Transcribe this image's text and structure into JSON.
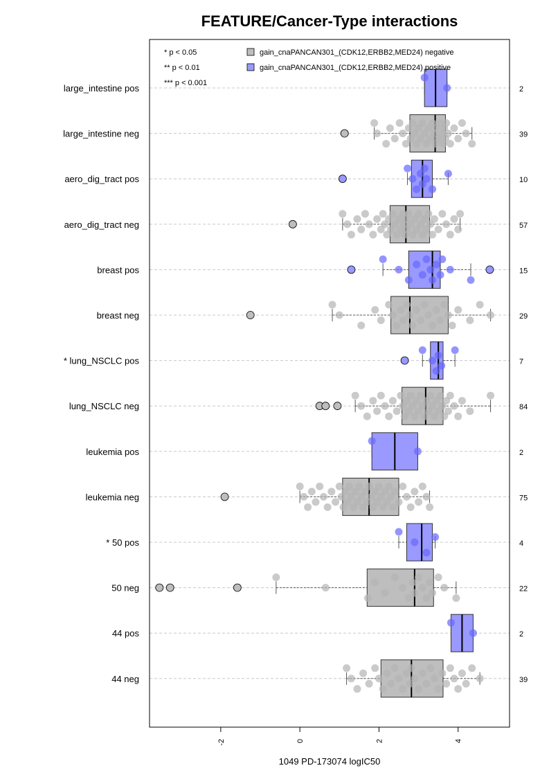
{
  "chart_data": {
    "type": "boxplot",
    "title": "FEATURE/Cancer-Type interactions",
    "xlabel": "1049 PD-173074 logIC50",
    "xlim": [
      -3.8,
      5.3
    ],
    "xticks": [
      -2,
      0,
      2,
      4
    ],
    "xtick_labels": [
      "-2",
      "0",
      "2",
      "4"
    ],
    "legend": {
      "placement": "top",
      "entries": [
        {
          "label": "gain_cnaPANCAN301_(CDK12,ERBB2,MED24) negative",
          "color": "#bebebe"
        },
        {
          "label": "gain_cnaPANCAN301_(CDK12,ERBB2,MED24) positive",
          "color": "#9999ff"
        }
      ],
      "significance": [
        "* p < 0.05",
        "** p < 0.01",
        "*** p < 0.001"
      ]
    },
    "colors": {
      "negative": "#bebebe",
      "positive": "#9999ff",
      "neg_points": "#b3b3b3",
      "pos_points": "#6666ff",
      "grid": "#c8c8c8"
    },
    "groups": [
      {
        "label": "large_intestine pos",
        "count": "2",
        "status": "positive",
        "stats": {
          "wlo": 3.15,
          "q1": 3.15,
          "median": 3.43,
          "q3": 3.72,
          "whi": 3.72
        },
        "outliers": [],
        "points": [
          3.15,
          3.72
        ]
      },
      {
        "label": "large_intestine neg",
        "count": "39",
        "status": "negative",
        "stats": {
          "wlo": 1.88,
          "q1": 2.78,
          "median": 3.42,
          "q3": 3.68,
          "whi": 4.35
        },
        "outliers": [
          1.13
        ],
        "points": [
          1.88,
          1.95,
          2.18,
          2.28,
          2.4,
          2.52,
          2.6,
          2.68,
          2.75,
          2.8,
          2.85,
          2.9,
          2.95,
          3.0,
          3.05,
          3.1,
          3.15,
          3.2,
          3.25,
          3.3,
          3.35,
          3.4,
          3.42,
          3.45,
          3.5,
          3.55,
          3.6,
          3.62,
          3.65,
          3.68,
          3.7,
          3.75,
          3.8,
          3.9,
          4.0,
          4.1,
          4.2,
          4.35
        ]
      },
      {
        "label": "aero_dig_tract pos",
        "count": "10",
        "status": "positive",
        "stats": {
          "wlo": 2.72,
          "q1": 2.82,
          "median": 3.1,
          "q3": 3.35,
          "whi": 3.75
        },
        "outliers": [
          1.08
        ],
        "points": [
          2.72,
          2.85,
          2.95,
          3.05,
          3.1,
          3.15,
          3.2,
          3.35,
          3.75
        ]
      },
      {
        "label": "aero_dig_tract neg",
        "count": "57",
        "status": "negative",
        "stats": {
          "wlo": 1.08,
          "q1": 2.28,
          "median": 2.68,
          "q3": 3.28,
          "whi": 4.05
        },
        "outliers": [
          -0.18
        ],
        "points": [
          1.08,
          1.2,
          1.3,
          1.45,
          1.55,
          1.65,
          1.75,
          1.85,
          1.95,
          2.05,
          2.1,
          2.15,
          2.2,
          2.25,
          2.3,
          2.35,
          2.4,
          2.45,
          2.5,
          2.55,
          2.6,
          2.62,
          2.65,
          2.68,
          2.7,
          2.75,
          2.8,
          2.85,
          2.9,
          2.95,
          3.0,
          3.05,
          3.1,
          3.15,
          3.2,
          3.25,
          3.3,
          3.35,
          3.4,
          3.5,
          3.6,
          3.7,
          3.8,
          3.9,
          4.0,
          4.05
        ]
      },
      {
        "label": "breast pos",
        "count": "15",
        "status": "positive",
        "stats": {
          "wlo": 2.1,
          "q1": 2.75,
          "median": 3.35,
          "q3": 3.55,
          "whi": 4.32
        },
        "outliers": [
          1.3,
          4.8
        ],
        "points": [
          2.1,
          2.5,
          2.75,
          2.95,
          3.1,
          3.2,
          3.3,
          3.35,
          3.45,
          3.55,
          3.6,
          3.8,
          4.32
        ]
      },
      {
        "label": "breast neg",
        "count": "29",
        "status": "negative",
        "stats": {
          "wlo": 0.82,
          "q1": 2.3,
          "median": 2.78,
          "q3": 3.75,
          "whi": 4.82
        },
        "outliers": [
          -1.25
        ],
        "points": [
          0.82,
          1.0,
          1.55,
          1.9,
          2.05,
          2.25,
          2.35,
          2.45,
          2.55,
          2.62,
          2.7,
          2.78,
          2.85,
          2.95,
          3.05,
          3.15,
          3.25,
          3.35,
          3.45,
          3.55,
          3.65,
          3.75,
          3.85,
          4.0,
          4.3,
          4.55,
          4.82
        ]
      },
      {
        "label": "* lung_NSCLC pos",
        "count": "7",
        "status": "positive",
        "stats": {
          "wlo": 3.1,
          "q1": 3.3,
          "median": 3.5,
          "q3": 3.62,
          "whi": 3.92
        },
        "outliers": [
          2.65
        ],
        "points": [
          3.1,
          3.35,
          3.45,
          3.5,
          3.58,
          3.92
        ]
      },
      {
        "label": "lung_NSCLC neg",
        "count": "84",
        "status": "negative",
        "stats": {
          "wlo": 1.4,
          "q1": 2.58,
          "median": 3.18,
          "q3": 3.62,
          "whi": 4.82
        },
        "outliers": [
          0.5,
          0.65,
          0.95
        ],
        "points": [
          1.4,
          1.55,
          1.7,
          1.85,
          1.95,
          2.05,
          2.15,
          2.25,
          2.35,
          2.45,
          2.55,
          2.6,
          2.65,
          2.7,
          2.75,
          2.8,
          2.85,
          2.9,
          2.95,
          3.0,
          3.05,
          3.1,
          3.15,
          3.2,
          3.25,
          3.3,
          3.35,
          3.4,
          3.45,
          3.5,
          3.55,
          3.6,
          3.65,
          3.7,
          3.75,
          3.8,
          3.9,
          4.0,
          4.1,
          4.3,
          4.82
        ]
      },
      {
        "label": "leukemia pos",
        "count": "2",
        "status": "positive",
        "stats": {
          "wlo": 1.82,
          "q1": 1.82,
          "median": 2.4,
          "q3": 2.98,
          "whi": 2.98
        },
        "outliers": [],
        "points": [
          1.82,
          2.98
        ]
      },
      {
        "label": "leukemia neg",
        "count": "75",
        "status": "negative",
        "stats": {
          "wlo": 0.0,
          "q1": 1.08,
          "median": 1.75,
          "q3": 2.5,
          "whi": 3.28
        },
        "outliers": [
          -1.9
        ],
        "points": [
          0.0,
          0.1,
          0.2,
          0.3,
          0.4,
          0.5,
          0.6,
          0.7,
          0.8,
          0.9,
          1.0,
          1.05,
          1.1,
          1.15,
          1.2,
          1.25,
          1.3,
          1.35,
          1.4,
          1.45,
          1.5,
          1.55,
          1.6,
          1.65,
          1.7,
          1.75,
          1.8,
          1.85,
          1.9,
          1.95,
          2.0,
          2.05,
          2.1,
          2.15,
          2.2,
          2.25,
          2.3,
          2.35,
          2.4,
          2.5,
          2.6,
          2.7,
          2.8,
          2.9,
          3.0,
          3.1,
          3.2,
          3.28
        ]
      },
      {
        "label": "* 50 pos",
        "count": "4",
        "status": "positive",
        "stats": {
          "wlo": 2.5,
          "q1": 2.7,
          "median": 3.08,
          "q3": 3.35,
          "whi": 3.42
        },
        "outliers": [],
        "points": [
          2.5,
          2.9,
          3.2,
          3.42
        ]
      },
      {
        "label": "50 neg",
        "count": "22",
        "status": "negative",
        "stats": {
          "wlo": -0.6,
          "q1": 1.7,
          "median": 2.9,
          "q3": 3.38,
          "whi": 3.95
        },
        "outliers": [
          -3.55,
          -3.28,
          -1.58
        ],
        "points": [
          -0.6,
          0.65,
          1.72,
          1.9,
          2.15,
          2.4,
          2.6,
          2.75,
          2.85,
          2.9,
          3.0,
          3.1,
          3.2,
          3.28,
          3.35,
          3.5,
          3.65,
          3.95
        ]
      },
      {
        "label": "44 pos",
        "count": "2",
        "status": "positive",
        "stats": {
          "wlo": 3.82,
          "q1": 3.82,
          "median": 4.1,
          "q3": 4.38,
          "whi": 4.38
        },
        "outliers": [],
        "points": [
          3.82,
          4.38
        ]
      },
      {
        "label": "44 neg",
        "count": "39",
        "status": "negative",
        "stats": {
          "wlo": 1.18,
          "q1": 2.05,
          "median": 2.82,
          "q3": 3.62,
          "whi": 4.55
        },
        "outliers": [],
        "points": [
          1.18,
          1.3,
          1.45,
          1.6,
          1.75,
          1.9,
          2.0,
          2.1,
          2.2,
          2.3,
          2.4,
          2.5,
          2.6,
          2.7,
          2.78,
          2.82,
          2.9,
          3.0,
          3.1,
          3.2,
          3.3,
          3.4,
          3.5,
          3.6,
          3.7,
          3.8,
          3.9,
          4.0,
          4.1,
          4.2,
          4.35,
          4.55
        ]
      }
    ]
  }
}
